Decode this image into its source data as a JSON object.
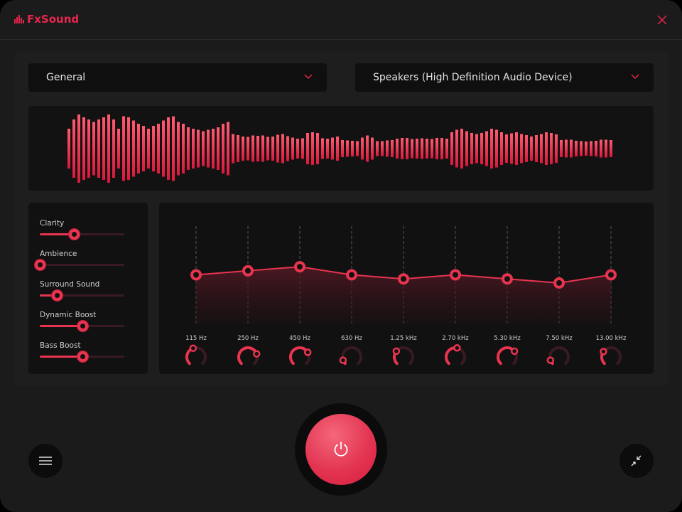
{
  "app": {
    "title": "FxSound",
    "accent": "#e8264d"
  },
  "header": {
    "close_icon": "close-icon"
  },
  "preset_dropdown": {
    "value": "General"
  },
  "output_dropdown": {
    "value": "Speakers (High Definition Audio Device)"
  },
  "effects": [
    {
      "label": "Clarity",
      "value": 0.4
    },
    {
      "label": "Ambience",
      "value": 0.0
    },
    {
      "label": "Surround Sound",
      "value": 0.2
    },
    {
      "label": "Dynamic Boost",
      "value": 0.5
    },
    {
      "label": "Bass Boost",
      "value": 0.5
    }
  ],
  "eq": {
    "gain_range_db": [
      -12,
      12
    ],
    "bands": [
      {
        "freq": "115 Hz",
        "gain_db": 0,
        "knob": 0.43
      },
      {
        "freq": "250 Hz",
        "gain_db": 1,
        "knob": 0.76
      },
      {
        "freq": "450 Hz",
        "gain_db": 2,
        "knob": 0.72
      },
      {
        "freq": "630 Hz",
        "gain_db": 0,
        "knob": 0.09
      },
      {
        "freq": "1.25 kHz",
        "gain_db": -1,
        "knob": 0.31
      },
      {
        "freq": "2.70 kHz",
        "gain_db": 0,
        "knob": 0.54
      },
      {
        "freq": "5.30 kHz",
        "gain_db": -1,
        "knob": 0.69
      },
      {
        "freq": "7.50 kHz",
        "gain_db": -2,
        "knob": 0.09
      },
      {
        "freq": "13.00 kHz",
        "gain_db": 0,
        "knob": 0.3
      }
    ]
  },
  "footer": {
    "menu_icon": "hamburger-icon",
    "power_icon": "power-icon",
    "collapse_icon": "collapse-icon"
  }
}
